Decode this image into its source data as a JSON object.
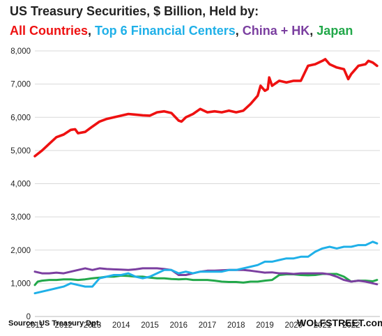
{
  "title": "US Treasury Securities, $ Billion, Held by:",
  "subtitle_parts": [
    {
      "text": "All Countries",
      "color": "#ee1111"
    },
    {
      "text": ", ",
      "color": "#222222"
    },
    {
      "text": "Top 6 Financial Centers",
      "color": "#1fb0e8"
    },
    {
      "text": ", ",
      "color": "#222222"
    },
    {
      "text": "China + HK",
      "color": "#7b3fa0"
    },
    {
      "text": ", ",
      "color": "#222222"
    },
    {
      "text": "Japan",
      "color": "#22a84a"
    }
  ],
  "source": "Source: US Treasury  Dpt.",
  "brand": "WOLFSTREET.com",
  "chart_data": {
    "type": "line",
    "title": "US Treasury Securities, $ Billion, Held by:",
    "xlim": [
      2011,
      2023
    ],
    "ylim": [
      0,
      8000
    ],
    "x_ticks": [
      "2011",
      "2012",
      "2013",
      "2014",
      "2015",
      "2016",
      "2017",
      "2018",
      "2019",
      "2020",
      "2021",
      "2022"
    ],
    "y_ticks": [
      "0",
      "1,000",
      "2,000",
      "3,000",
      "4,000",
      "5,000",
      "6,000",
      "7,000",
      "8,000"
    ],
    "grid": "horizontal",
    "series": [
      {
        "name": "All Countries",
        "color": "#ee1111",
        "x": [
          2011.0,
          2011.25,
          2011.5,
          2011.75,
          2012.0,
          2012.25,
          2012.4,
          2012.5,
          2012.75,
          2013.0,
          2013.25,
          2013.5,
          2013.75,
          2014.0,
          2014.25,
          2014.5,
          2014.75,
          2015.0,
          2015.25,
          2015.5,
          2015.75,
          2016.0,
          2016.1,
          2016.25,
          2016.5,
          2016.75,
          2017.0,
          2017.25,
          2017.5,
          2017.75,
          2018.0,
          2018.25,
          2018.5,
          2018.75,
          2018.85,
          2019.0,
          2019.1,
          2019.15,
          2019.25,
          2019.5,
          2019.75,
          2020.0,
          2020.25,
          2020.5,
          2020.75,
          2021.0,
          2021.1,
          2021.25,
          2021.5,
          2021.75,
          2021.9,
          2022.0,
          2022.25,
          2022.5,
          2022.6,
          2022.75,
          2022.9
        ],
        "y": [
          4830,
          5000,
          5200,
          5400,
          5480,
          5620,
          5640,
          5520,
          5560,
          5720,
          5870,
          5950,
          6000,
          6050,
          6100,
          6080,
          6060,
          6050,
          6150,
          6180,
          6130,
          5900,
          5870,
          6000,
          6100,
          6250,
          6150,
          6180,
          6150,
          6200,
          6150,
          6200,
          6400,
          6650,
          6950,
          6800,
          6850,
          7200,
          6950,
          7100,
          7050,
          7100,
          7100,
          7550,
          7600,
          7700,
          7750,
          7600,
          7500,
          7450,
          7150,
          7300,
          7550,
          7600,
          7700,
          7650,
          7550
        ]
      },
      {
        "name": "Top 6 Financial Centers",
        "color": "#1fb0e8",
        "x": [
          2011.0,
          2011.25,
          2011.5,
          2011.75,
          2012.0,
          2012.25,
          2012.5,
          2012.75,
          2013.0,
          2013.1,
          2013.25,
          2013.5,
          2013.75,
          2014.0,
          2014.25,
          2014.5,
          2014.75,
          2015.0,
          2015.25,
          2015.5,
          2015.75,
          2016.0,
          2016.25,
          2016.5,
          2016.75,
          2017.0,
          2017.25,
          2017.5,
          2017.75,
          2018.0,
          2018.25,
          2018.5,
          2018.75,
          2019.0,
          2019.25,
          2019.5,
          2019.75,
          2020.0,
          2020.25,
          2020.5,
          2020.75,
          2021.0,
          2021.25,
          2021.5,
          2021.75,
          2022.0,
          2022.25,
          2022.5,
          2022.75,
          2022.9
        ],
        "y": [
          700,
          750,
          800,
          850,
          900,
          1000,
          950,
          900,
          900,
          1000,
          1150,
          1200,
          1250,
          1250,
          1300,
          1200,
          1150,
          1200,
          1300,
          1400,
          1400,
          1300,
          1350,
          1300,
          1350,
          1350,
          1350,
          1350,
          1400,
          1400,
          1450,
          1500,
          1550,
          1650,
          1650,
          1700,
          1750,
          1750,
          1800,
          1800,
          1950,
          2050,
          2100,
          2050,
          2100,
          2100,
          2150,
          2150,
          2250,
          2200
        ]
      },
      {
        "name": "China + HK",
        "color": "#7b3fa0",
        "x": [
          2011.0,
          2011.25,
          2011.5,
          2011.75,
          2012.0,
          2012.25,
          2012.5,
          2012.75,
          2013.0,
          2013.25,
          2013.5,
          2013.75,
          2014.0,
          2014.25,
          2014.5,
          2014.75,
          2015.0,
          2015.25,
          2015.5,
          2015.75,
          2016.0,
          2016.25,
          2016.5,
          2016.75,
          2017.0,
          2017.25,
          2017.5,
          2017.75,
          2018.0,
          2018.25,
          2018.5,
          2018.75,
          2019.0,
          2019.25,
          2019.5,
          2019.75,
          2020.0,
          2020.25,
          2020.5,
          2020.75,
          2021.0,
          2021.25,
          2021.5,
          2021.75,
          2022.0,
          2022.25,
          2022.5,
          2022.75,
          2022.9
        ],
        "y": [
          1350,
          1300,
          1300,
          1320,
          1300,
          1350,
          1400,
          1450,
          1400,
          1450,
          1430,
          1420,
          1410,
          1400,
          1420,
          1450,
          1450,
          1450,
          1430,
          1400,
          1250,
          1250,
          1300,
          1350,
          1380,
          1380,
          1390,
          1400,
          1400,
          1400,
          1380,
          1350,
          1320,
          1330,
          1300,
          1300,
          1280,
          1300,
          1300,
          1300,
          1300,
          1270,
          1200,
          1100,
          1050,
          1080,
          1050,
          1000,
          970
        ]
      },
      {
        "name": "Japan",
        "color": "#22a84a",
        "x": [
          2011.0,
          2011.1,
          2011.25,
          2011.5,
          2011.75,
          2012.0,
          2012.25,
          2012.5,
          2012.75,
          2013.0,
          2013.25,
          2013.5,
          2013.75,
          2014.0,
          2014.25,
          2014.5,
          2014.75,
          2015.0,
          2015.25,
          2015.5,
          2015.75,
          2016.0,
          2016.25,
          2016.5,
          2016.75,
          2017.0,
          2017.25,
          2017.5,
          2017.75,
          2018.0,
          2018.25,
          2018.5,
          2018.75,
          2019.0,
          2019.25,
          2019.5,
          2019.75,
          2020.0,
          2020.25,
          2020.5,
          2020.75,
          2021.0,
          2021.25,
          2021.5,
          2021.75,
          2022.0,
          2022.25,
          2022.5,
          2022.75,
          2022.9
        ],
        "y": [
          950,
          1050,
          1080,
          1100,
          1100,
          1120,
          1120,
          1100,
          1120,
          1150,
          1170,
          1200,
          1200,
          1230,
          1220,
          1200,
          1200,
          1170,
          1150,
          1150,
          1130,
          1120,
          1130,
          1100,
          1100,
          1100,
          1080,
          1050,
          1040,
          1040,
          1020,
          1050,
          1050,
          1080,
          1100,
          1250,
          1270,
          1270,
          1250,
          1240,
          1250,
          1280,
          1280,
          1280,
          1200,
          1050,
          1080,
          1080,
          1060,
          1100
        ]
      }
    ]
  }
}
